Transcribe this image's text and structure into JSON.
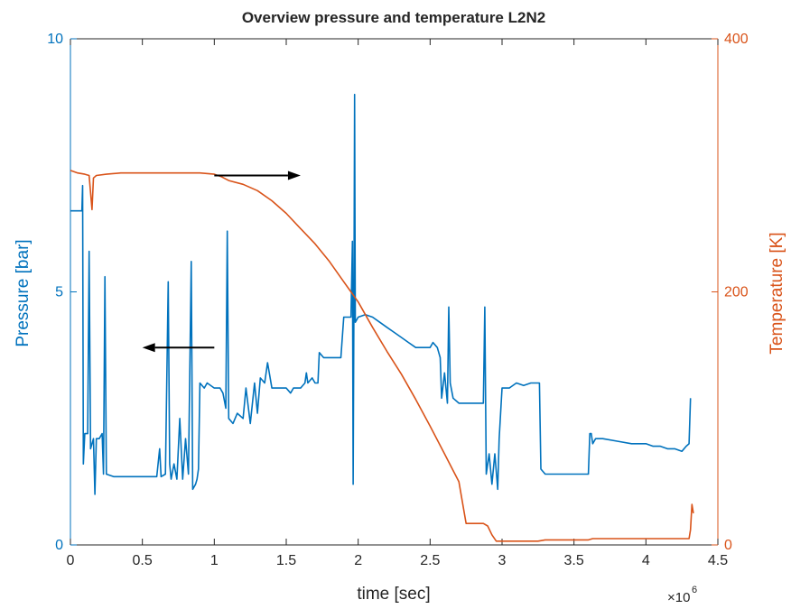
{
  "chart_data": {
    "type": "line",
    "title": "Overview pressure and temperature L2N2",
    "xlabel": "time [sec]",
    "x_exponent_base": "×10",
    "x_exponent": "6",
    "xlim": [
      0,
      4.5
    ],
    "x_ticks": [
      "0",
      "0.5",
      "1",
      "1.5",
      "2",
      "2.5",
      "3",
      "3.5",
      "4",
      "4.5"
    ],
    "ylabel_left": "Pressure [bar]",
    "ylim_left": [
      0,
      10
    ],
    "y_ticks_left": [
      "0",
      "5",
      "10"
    ],
    "ylabel_right": "Temperature [K]",
    "ylim_right": [
      0,
      400
    ],
    "y_ticks_right": [
      "0",
      "200",
      "400"
    ],
    "grid": false,
    "colors": {
      "pressure": "#0072BD",
      "temperature": "#D95319",
      "arrow": "#000000"
    },
    "annotations": [
      {
        "type": "arrow",
        "points_to": "right axis",
        "from": [
          1.0,
          292
        ],
        "to": [
          1.6,
          292
        ],
        "axis": "right"
      },
      {
        "type": "arrow",
        "points_to": "left axis",
        "from": [
          1.0,
          3.9
        ],
        "to": [
          0.5,
          3.9
        ],
        "axis": "left"
      }
    ],
    "series": [
      {
        "axis": "left",
        "points": [
          [
            0.0,
            6.6
          ],
          [
            0.08,
            6.6
          ],
          [
            0.085,
            7.1
          ],
          [
            0.09,
            1.6
          ],
          [
            0.1,
            2.2
          ],
          [
            0.12,
            2.2
          ],
          [
            0.13,
            5.8
          ],
          [
            0.14,
            1.9
          ],
          [
            0.16,
            2.1
          ],
          [
            0.17,
            1.0
          ],
          [
            0.18,
            2.1
          ],
          [
            0.2,
            2.1
          ],
          [
            0.22,
            2.2
          ],
          [
            0.23,
            1.4
          ],
          [
            0.24,
            5.3
          ],
          [
            0.25,
            1.4
          ],
          [
            0.3,
            1.35
          ],
          [
            0.5,
            1.35
          ],
          [
            0.6,
            1.35
          ],
          [
            0.62,
            1.9
          ],
          [
            0.63,
            1.35
          ],
          [
            0.66,
            1.4
          ],
          [
            0.68,
            5.2
          ],
          [
            0.69,
            1.6
          ],
          [
            0.7,
            1.3
          ],
          [
            0.72,
            1.6
          ],
          [
            0.74,
            1.3
          ],
          [
            0.76,
            2.5
          ],
          [
            0.78,
            1.3
          ],
          [
            0.8,
            2.1
          ],
          [
            0.82,
            1.4
          ],
          [
            0.84,
            5.6
          ],
          [
            0.85,
            1.1
          ],
          [
            0.87,
            1.2
          ],
          [
            0.88,
            1.3
          ],
          [
            0.89,
            1.5
          ],
          [
            0.9,
            3.2
          ],
          [
            0.93,
            3.1
          ],
          [
            0.95,
            3.2
          ],
          [
            1.0,
            3.1
          ],
          [
            1.04,
            3.1
          ],
          [
            1.06,
            3.0
          ],
          [
            1.08,
            2.7
          ],
          [
            1.09,
            6.2
          ],
          [
            1.1,
            2.5
          ],
          [
            1.13,
            2.4
          ],
          [
            1.16,
            2.6
          ],
          [
            1.2,
            2.5
          ],
          [
            1.22,
            3.1
          ],
          [
            1.25,
            2.4
          ],
          [
            1.28,
            3.2
          ],
          [
            1.3,
            2.6
          ],
          [
            1.32,
            3.3
          ],
          [
            1.35,
            3.2
          ],
          [
            1.37,
            3.6
          ],
          [
            1.4,
            3.1
          ],
          [
            1.45,
            3.1
          ],
          [
            1.5,
            3.1
          ],
          [
            1.53,
            3.0
          ],
          [
            1.55,
            3.1
          ],
          [
            1.6,
            3.1
          ],
          [
            1.63,
            3.2
          ],
          [
            1.64,
            3.4
          ],
          [
            1.65,
            3.2
          ],
          [
            1.68,
            3.3
          ],
          [
            1.7,
            3.2
          ],
          [
            1.72,
            3.2
          ],
          [
            1.73,
            3.8
          ],
          [
            1.76,
            3.7
          ],
          [
            1.8,
            3.7
          ],
          [
            1.85,
            3.7
          ],
          [
            1.88,
            3.7
          ],
          [
            1.9,
            4.5
          ],
          [
            1.92,
            4.5
          ],
          [
            1.95,
            4.5
          ],
          [
            1.96,
            6.0
          ],
          [
            1.965,
            1.2
          ],
          [
            1.97,
            4.5
          ],
          [
            1.975,
            8.9
          ],
          [
            1.98,
            4.4
          ],
          [
            2.0,
            4.5
          ],
          [
            2.05,
            4.55
          ],
          [
            2.1,
            4.5
          ],
          [
            2.15,
            4.4
          ],
          [
            2.2,
            4.3
          ],
          [
            2.25,
            4.2
          ],
          [
            2.3,
            4.1
          ],
          [
            2.35,
            4.0
          ],
          [
            2.4,
            3.9
          ],
          [
            2.45,
            3.9
          ],
          [
            2.5,
            3.9
          ],
          [
            2.52,
            4.0
          ],
          [
            2.55,
            3.9
          ],
          [
            2.57,
            3.7
          ],
          [
            2.58,
            2.9
          ],
          [
            2.6,
            3.4
          ],
          [
            2.62,
            2.8
          ],
          [
            2.63,
            4.7
          ],
          [
            2.64,
            3.2
          ],
          [
            2.66,
            2.9
          ],
          [
            2.7,
            2.8
          ],
          [
            2.75,
            2.8
          ],
          [
            2.8,
            2.8
          ],
          [
            2.85,
            2.8
          ],
          [
            2.87,
            2.8
          ],
          [
            2.88,
            4.7
          ],
          [
            2.89,
            1.4
          ],
          [
            2.91,
            1.8
          ],
          [
            2.93,
            1.2
          ],
          [
            2.95,
            1.8
          ],
          [
            2.97,
            1.1
          ],
          [
            2.98,
            2.1
          ],
          [
            3.0,
            3.1
          ],
          [
            3.05,
            3.1
          ],
          [
            3.1,
            3.2
          ],
          [
            3.15,
            3.15
          ],
          [
            3.2,
            3.2
          ],
          [
            3.23,
            3.2
          ],
          [
            3.26,
            3.2
          ],
          [
            3.27,
            1.5
          ],
          [
            3.3,
            1.4
          ],
          [
            3.4,
            1.4
          ],
          [
            3.5,
            1.4
          ],
          [
            3.55,
            1.4
          ],
          [
            3.6,
            1.4
          ],
          [
            3.61,
            2.2
          ],
          [
            3.62,
            2.2
          ],
          [
            3.63,
            2.0
          ],
          [
            3.65,
            2.1
          ],
          [
            3.7,
            2.1
          ],
          [
            3.8,
            2.05
          ],
          [
            3.9,
            2.0
          ],
          [
            4.0,
            2.0
          ],
          [
            4.05,
            1.95
          ],
          [
            4.1,
            1.95
          ],
          [
            4.15,
            1.9
          ],
          [
            4.2,
            1.9
          ],
          [
            4.25,
            1.85
          ],
          [
            4.28,
            1.95
          ],
          [
            4.3,
            2.0
          ],
          [
            4.31,
            2.9
          ]
        ]
      },
      {
        "axis": "right",
        "points": [
          [
            0.0,
            296
          ],
          [
            0.05,
            294
          ],
          [
            0.1,
            293
          ],
          [
            0.13,
            292
          ],
          [
            0.15,
            265
          ],
          [
            0.16,
            290
          ],
          [
            0.18,
            292
          ],
          [
            0.25,
            293
          ],
          [
            0.35,
            294
          ],
          [
            0.45,
            294
          ],
          [
            0.55,
            294
          ],
          [
            0.7,
            294
          ],
          [
            0.8,
            294
          ],
          [
            0.9,
            294
          ],
          [
            1.0,
            293
          ],
          [
            1.05,
            291
          ],
          [
            1.1,
            288
          ],
          [
            1.2,
            285
          ],
          [
            1.3,
            280
          ],
          [
            1.4,
            272
          ],
          [
            1.5,
            262
          ],
          [
            1.6,
            250
          ],
          [
            1.7,
            238
          ],
          [
            1.8,
            224
          ],
          [
            1.9,
            208
          ],
          [
            1.95,
            200
          ],
          [
            2.0,
            192
          ],
          [
            2.05,
            182
          ],
          [
            2.1,
            172
          ],
          [
            2.2,
            153
          ],
          [
            2.3,
            135
          ],
          [
            2.4,
            115
          ],
          [
            2.5,
            94
          ],
          [
            2.6,
            72
          ],
          [
            2.65,
            61
          ],
          [
            2.7,
            50
          ],
          [
            2.75,
            17
          ],
          [
            2.8,
            17
          ],
          [
            2.85,
            17
          ],
          [
            2.87,
            17
          ],
          [
            2.9,
            15
          ],
          [
            2.93,
            8
          ],
          [
            2.96,
            3
          ],
          [
            3.0,
            3
          ],
          [
            3.05,
            3
          ],
          [
            3.1,
            3
          ],
          [
            3.15,
            3
          ],
          [
            3.2,
            3
          ],
          [
            3.25,
            3
          ],
          [
            3.3,
            4
          ],
          [
            3.4,
            4
          ],
          [
            3.5,
            4
          ],
          [
            3.6,
            4
          ],
          [
            3.63,
            5
          ],
          [
            3.7,
            5
          ],
          [
            3.8,
            5
          ],
          [
            3.9,
            5
          ],
          [
            4.0,
            5
          ],
          [
            4.1,
            5
          ],
          [
            4.2,
            5
          ],
          [
            4.25,
            5
          ],
          [
            4.3,
            5
          ],
          [
            4.31,
            12
          ],
          [
            4.32,
            32
          ],
          [
            4.33,
            25
          ]
        ]
      }
    ]
  }
}
